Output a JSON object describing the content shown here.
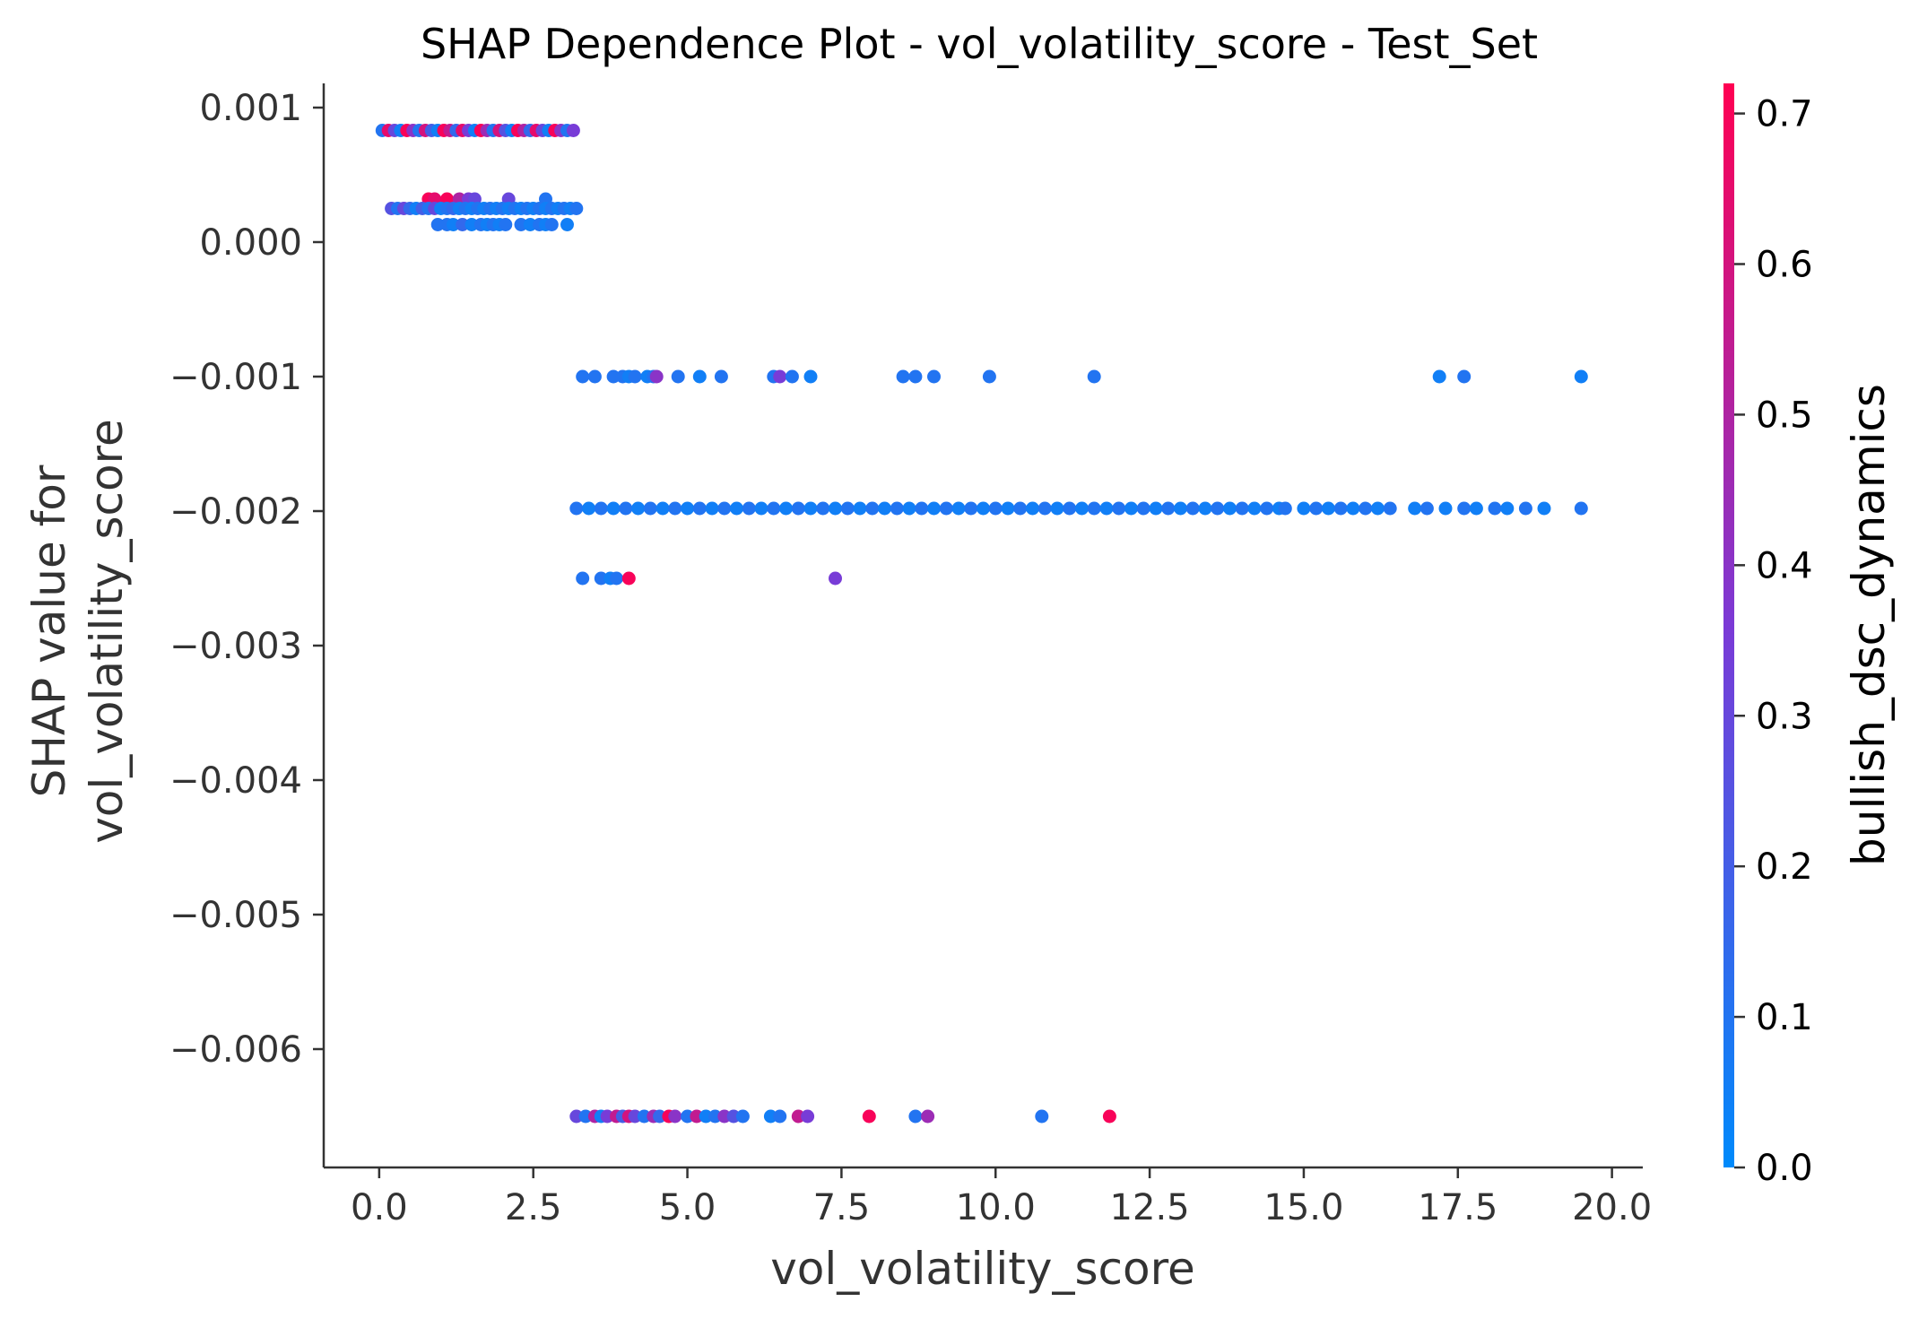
{
  "chart_data": {
    "type": "scatter",
    "title": "SHAP Dependence Plot - vol_volatility_score - Test_Set",
    "xlabel": "vol_volatility_score",
    "ylabel_lines": [
      "SHAP value for",
      "vol_volatility_score"
    ],
    "xlim": [
      -0.9,
      20.5
    ],
    "ylim": [
      -0.00688,
      0.00118
    ],
    "xticks": [
      0.0,
      2.5,
      5.0,
      7.5,
      10.0,
      12.5,
      15.0,
      17.5,
      20.0
    ],
    "xtick_labels": [
      "0.0",
      "2.5",
      "5.0",
      "7.5",
      "10.0",
      "12.5",
      "15.0",
      "17.5",
      "20.0"
    ],
    "yticks": [
      0.001,
      0.0,
      -0.001,
      -0.002,
      -0.003,
      -0.004,
      -0.005,
      -0.006
    ],
    "ytick_labels": [
      "0.001",
      "0.000",
      "−0.001",
      "−0.002",
      "−0.003",
      "−0.004",
      "−0.005",
      "−0.006"
    ],
    "colorbar": {
      "label": "bullish_dsc_dynamics",
      "range": [
        0.0,
        0.72
      ],
      "ticks": [
        0.0,
        0.1,
        0.2,
        0.3,
        0.4,
        0.5,
        0.6,
        0.7
      ],
      "tick_labels": [
        "0.0",
        "0.1",
        "0.2",
        "0.3",
        "0.4",
        "0.5",
        "0.6",
        "0.7"
      ],
      "color_low": "#008afb",
      "color_mid": "#7b3ad6",
      "color_high": "#ff0052"
    },
    "grid": false,
    "legend": "colorbar-right",
    "points": [
      [
        0.05,
        0.00083,
        0.1
      ],
      [
        0.15,
        0.00083,
        0.65
      ],
      [
        0.25,
        0.00083,
        0.3
      ],
      [
        0.35,
        0.00083,
        0.05
      ],
      [
        0.45,
        0.00083,
        0.7
      ],
      [
        0.55,
        0.00083,
        0.4
      ],
      [
        0.65,
        0.00083,
        0.1
      ],
      [
        0.75,
        0.00083,
        0.6
      ],
      [
        0.85,
        0.00083,
        0.2
      ],
      [
        0.95,
        0.00083,
        0.05
      ],
      [
        1.05,
        0.00083,
        0.7
      ],
      [
        1.15,
        0.00083,
        0.55
      ],
      [
        1.25,
        0.00083,
        0.15
      ],
      [
        1.35,
        0.00083,
        0.65
      ],
      [
        1.45,
        0.00083,
        0.35
      ],
      [
        1.55,
        0.00083,
        0.05
      ],
      [
        1.65,
        0.00083,
        0.7
      ],
      [
        1.75,
        0.00083,
        0.45
      ],
      [
        1.85,
        0.00083,
        0.1
      ],
      [
        1.95,
        0.00083,
        0.6
      ],
      [
        2.05,
        0.00083,
        0.25
      ],
      [
        2.15,
        0.00083,
        0.05
      ],
      [
        2.25,
        0.00083,
        0.7
      ],
      [
        2.35,
        0.00083,
        0.5
      ],
      [
        2.45,
        0.00083,
        0.15
      ],
      [
        2.55,
        0.00083,
        0.65
      ],
      [
        2.65,
        0.00083,
        0.3
      ],
      [
        2.75,
        0.00083,
        0.05
      ],
      [
        2.85,
        0.00083,
        0.7
      ],
      [
        2.95,
        0.00083,
        0.4
      ],
      [
        3.05,
        0.00083,
        0.1
      ],
      [
        3.15,
        0.00083,
        0.35
      ],
      [
        0.8,
        0.00032,
        0.7
      ],
      [
        0.9,
        0.00032,
        0.65
      ],
      [
        1.1,
        0.00032,
        0.7
      ],
      [
        1.3,
        0.00032,
        0.5
      ],
      [
        1.45,
        0.00032,
        0.35
      ],
      [
        1.55,
        0.00032,
        0.3
      ],
      [
        2.1,
        0.00032,
        0.3
      ],
      [
        2.7,
        0.00032,
        0.1
      ],
      [
        0.2,
        0.00025,
        0.25
      ],
      [
        0.3,
        0.00025,
        0.1
      ],
      [
        0.4,
        0.00025,
        0.3
      ],
      [
        0.5,
        0.00025,
        0.15
      ],
      [
        0.6,
        0.00025,
        0.05
      ],
      [
        0.7,
        0.00025,
        0.2
      ],
      [
        0.8,
        0.00025,
        0.1
      ],
      [
        0.9,
        0.00025,
        0.3
      ],
      [
        1.0,
        0.00025,
        0.05
      ],
      [
        1.1,
        0.00025,
        0.1
      ],
      [
        1.2,
        0.00025,
        0.15
      ],
      [
        1.3,
        0.00025,
        0.05
      ],
      [
        1.4,
        0.00025,
        0.1
      ],
      [
        1.5,
        0.00025,
        0.05
      ],
      [
        1.6,
        0.00025,
        0.1
      ],
      [
        1.7,
        0.00025,
        0.05
      ],
      [
        1.8,
        0.00025,
        0.1
      ],
      [
        1.9,
        0.00025,
        0.05
      ],
      [
        2.0,
        0.00025,
        0.1
      ],
      [
        2.1,
        0.00025,
        0.05
      ],
      [
        2.2,
        0.00025,
        0.1
      ],
      [
        2.3,
        0.00025,
        0.05
      ],
      [
        2.4,
        0.00025,
        0.1
      ],
      [
        2.5,
        0.00025,
        0.05
      ],
      [
        2.6,
        0.00025,
        0.1
      ],
      [
        2.7,
        0.00025,
        0.05
      ],
      [
        2.8,
        0.00025,
        0.1
      ],
      [
        2.9,
        0.00025,
        0.05
      ],
      [
        3.0,
        0.00025,
        0.1
      ],
      [
        3.1,
        0.00025,
        0.05
      ],
      [
        3.2,
        0.00025,
        0.1
      ],
      [
        0.95,
        0.00013,
        0.1
      ],
      [
        1.1,
        0.00013,
        0.1
      ],
      [
        1.2,
        0.00013,
        0.05
      ],
      [
        1.35,
        0.00013,
        0.15
      ],
      [
        1.5,
        0.00013,
        0.05
      ],
      [
        1.65,
        0.00013,
        0.1
      ],
      [
        1.75,
        0.00013,
        0.05
      ],
      [
        1.85,
        0.00013,
        0.1
      ],
      [
        1.95,
        0.00013,
        0.05
      ],
      [
        2.05,
        0.00013,
        0.1
      ],
      [
        2.3,
        0.00013,
        0.1
      ],
      [
        2.45,
        0.00013,
        0.05
      ],
      [
        2.6,
        0.00013,
        0.1
      ],
      [
        2.7,
        0.00013,
        0.05
      ],
      [
        2.8,
        0.00013,
        0.1
      ],
      [
        3.05,
        0.00013,
        0.05
      ],
      [
        3.3,
        -0.001,
        0.1
      ],
      [
        3.5,
        -0.001,
        0.1
      ],
      [
        3.8,
        -0.001,
        0.1
      ],
      [
        3.95,
        -0.001,
        0.1
      ],
      [
        4.05,
        -0.001,
        0.05
      ],
      [
        4.15,
        -0.001,
        0.1
      ],
      [
        4.35,
        -0.001,
        0.05
      ],
      [
        4.45,
        -0.001,
        0.1
      ],
      [
        4.5,
        -0.001,
        0.4
      ],
      [
        4.85,
        -0.001,
        0.1
      ],
      [
        5.2,
        -0.001,
        0.05
      ],
      [
        5.55,
        -0.001,
        0.1
      ],
      [
        6.4,
        -0.001,
        0.1
      ],
      [
        6.5,
        -0.001,
        0.35
      ],
      [
        6.7,
        -0.001,
        0.1
      ],
      [
        7.0,
        -0.001,
        0.05
      ],
      [
        8.5,
        -0.001,
        0.1
      ],
      [
        8.7,
        -0.001,
        0.1
      ],
      [
        9.0,
        -0.001,
        0.1
      ],
      [
        9.9,
        -0.001,
        0.1
      ],
      [
        11.6,
        -0.001,
        0.1
      ],
      [
        17.2,
        -0.001,
        0.05
      ],
      [
        17.6,
        -0.001,
        0.1
      ],
      [
        19.5,
        -0.001,
        0.05
      ],
      [
        3.2,
        -0.00198,
        0.1
      ],
      [
        3.4,
        -0.00198,
        0.05
      ],
      [
        3.6,
        -0.00198,
        0.1
      ],
      [
        3.8,
        -0.00198,
        0.05
      ],
      [
        4.0,
        -0.00198,
        0.1
      ],
      [
        4.2,
        -0.00198,
        0.05
      ],
      [
        4.4,
        -0.00198,
        0.1
      ],
      [
        4.6,
        -0.00198,
        0.05
      ],
      [
        4.8,
        -0.00198,
        0.1
      ],
      [
        5.0,
        -0.00198,
        0.05
      ],
      [
        5.2,
        -0.00198,
        0.1
      ],
      [
        5.4,
        -0.00198,
        0.05
      ],
      [
        5.6,
        -0.00198,
        0.1
      ],
      [
        5.8,
        -0.00198,
        0.05
      ],
      [
        6.0,
        -0.00198,
        0.1
      ],
      [
        6.2,
        -0.00198,
        0.05
      ],
      [
        6.4,
        -0.00198,
        0.1
      ],
      [
        6.6,
        -0.00198,
        0.05
      ],
      [
        6.8,
        -0.00198,
        0.1
      ],
      [
        7.0,
        -0.00198,
        0.05
      ],
      [
        7.2,
        -0.00198,
        0.1
      ],
      [
        7.4,
        -0.00198,
        0.05
      ],
      [
        7.6,
        -0.00198,
        0.1
      ],
      [
        7.8,
        -0.00198,
        0.05
      ],
      [
        8.0,
        -0.00198,
        0.1
      ],
      [
        8.2,
        -0.00198,
        0.05
      ],
      [
        8.4,
        -0.00198,
        0.1
      ],
      [
        8.6,
        -0.00198,
        0.05
      ],
      [
        8.8,
        -0.00198,
        0.1
      ],
      [
        9.0,
        -0.00198,
        0.05
      ],
      [
        9.2,
        -0.00198,
        0.1
      ],
      [
        9.4,
        -0.00198,
        0.05
      ],
      [
        9.6,
        -0.00198,
        0.1
      ],
      [
        9.8,
        -0.00198,
        0.05
      ],
      [
        10.0,
        -0.00198,
        0.1
      ],
      [
        10.2,
        -0.00198,
        0.05
      ],
      [
        10.4,
        -0.00198,
        0.1
      ],
      [
        10.6,
        -0.00198,
        0.05
      ],
      [
        10.8,
        -0.00198,
        0.1
      ],
      [
        11.0,
        -0.00198,
        0.05
      ],
      [
        11.2,
        -0.00198,
        0.1
      ],
      [
        11.4,
        -0.00198,
        0.05
      ],
      [
        11.6,
        -0.00198,
        0.1
      ],
      [
        11.8,
        -0.00198,
        0.05
      ],
      [
        12.0,
        -0.00198,
        0.1
      ],
      [
        12.2,
        -0.00198,
        0.05
      ],
      [
        12.4,
        -0.00198,
        0.1
      ],
      [
        12.6,
        -0.00198,
        0.05
      ],
      [
        12.8,
        -0.00198,
        0.1
      ],
      [
        13.0,
        -0.00198,
        0.05
      ],
      [
        13.2,
        -0.00198,
        0.1
      ],
      [
        13.4,
        -0.00198,
        0.05
      ],
      [
        13.6,
        -0.00198,
        0.1
      ],
      [
        13.8,
        -0.00198,
        0.05
      ],
      [
        14.0,
        -0.00198,
        0.1
      ],
      [
        14.2,
        -0.00198,
        0.05
      ],
      [
        14.4,
        -0.00198,
        0.1
      ],
      [
        14.6,
        -0.00198,
        0.05
      ],
      [
        14.7,
        -0.00198,
        0.1
      ],
      [
        15.0,
        -0.00198,
        0.05
      ],
      [
        15.2,
        -0.00198,
        0.1
      ],
      [
        15.4,
        -0.00198,
        0.05
      ],
      [
        15.6,
        -0.00198,
        0.1
      ],
      [
        15.8,
        -0.00198,
        0.05
      ],
      [
        16.0,
        -0.00198,
        0.1
      ],
      [
        16.2,
        -0.00198,
        0.05
      ],
      [
        16.4,
        -0.00198,
        0.1
      ],
      [
        16.8,
        -0.00198,
        0.05
      ],
      [
        17.0,
        -0.00198,
        0.1
      ],
      [
        17.3,
        -0.00198,
        0.05
      ],
      [
        17.6,
        -0.00198,
        0.1
      ],
      [
        17.8,
        -0.00198,
        0.05
      ],
      [
        18.1,
        -0.00198,
        0.1
      ],
      [
        18.3,
        -0.00198,
        0.05
      ],
      [
        18.6,
        -0.00198,
        0.1
      ],
      [
        18.9,
        -0.00198,
        0.05
      ],
      [
        19.5,
        -0.00198,
        0.1
      ],
      [
        3.3,
        -0.0025,
        0.1
      ],
      [
        3.6,
        -0.0025,
        0.1
      ],
      [
        3.75,
        -0.0025,
        0.05
      ],
      [
        3.85,
        -0.0025,
        0.1
      ],
      [
        4.05,
        -0.0025,
        0.7
      ],
      [
        7.4,
        -0.0025,
        0.35
      ],
      [
        3.2,
        -0.0065,
        0.3
      ],
      [
        3.35,
        -0.0065,
        0.1
      ],
      [
        3.5,
        -0.0065,
        0.5
      ],
      [
        3.6,
        -0.0065,
        0.05
      ],
      [
        3.7,
        -0.0065,
        0.35
      ],
      [
        3.85,
        -0.0065,
        0.55
      ],
      [
        3.95,
        -0.0065,
        0.2
      ],
      [
        4.05,
        -0.0065,
        0.6
      ],
      [
        4.15,
        -0.0065,
        0.3
      ],
      [
        4.3,
        -0.0065,
        0.1
      ],
      [
        4.45,
        -0.0065,
        0.45
      ],
      [
        4.55,
        -0.0065,
        0.15
      ],
      [
        4.7,
        -0.0065,
        0.7
      ],
      [
        4.8,
        -0.0065,
        0.4
      ],
      [
        5.0,
        -0.0065,
        0.1
      ],
      [
        5.15,
        -0.0065,
        0.55
      ],
      [
        5.3,
        -0.0065,
        0.05
      ],
      [
        5.45,
        -0.0065,
        0.1
      ],
      [
        5.6,
        -0.0065,
        0.4
      ],
      [
        5.75,
        -0.0065,
        0.25
      ],
      [
        5.9,
        -0.0065,
        0.1
      ],
      [
        6.35,
        -0.0065,
        0.05
      ],
      [
        6.5,
        -0.0065,
        0.1
      ],
      [
        6.8,
        -0.0065,
        0.55
      ],
      [
        6.95,
        -0.0065,
        0.35
      ],
      [
        7.95,
        -0.0065,
        0.7
      ],
      [
        8.7,
        -0.0065,
        0.1
      ],
      [
        8.9,
        -0.0065,
        0.45
      ],
      [
        10.75,
        -0.0065,
        0.1
      ],
      [
        11.85,
        -0.0065,
        0.7
      ]
    ]
  }
}
